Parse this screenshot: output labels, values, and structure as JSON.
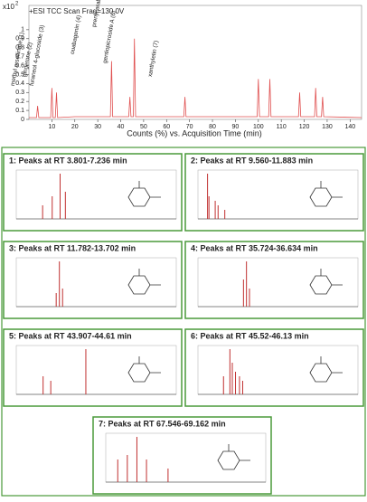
{
  "chart_data": [
    {
      "type": "line",
      "title": "+ESI TCC Scan Frag=130.0V",
      "y_scale": "x10",
      "y_scale_exp": "2",
      "xlabel": "Counts (%) vs. Acquisition Time (min)",
      "x": [
        0,
        3.3,
        3.8,
        4.3,
        9.5,
        10,
        10.5,
        11.5,
        12,
        12.5,
        20,
        35.5,
        36,
        36.5,
        43.5,
        44,
        44.5,
        45.5,
        46,
        46.5,
        67.5,
        68,
        68.5,
        99.5,
        100,
        100.5,
        104.5,
        105,
        105.5,
        117.5,
        118,
        118.5,
        124.5,
        125,
        125.5,
        127.5,
        128,
        128.5,
        145
      ],
      "values": [
        0.02,
        0.02,
        0.15,
        0.02,
        0.02,
        0.35,
        0.02,
        0.02,
        0.3,
        0.02,
        0.03,
        0.03,
        0.65,
        0.03,
        0.03,
        0.25,
        0.03,
        0.03,
        0.9,
        0.03,
        0.03,
        0.25,
        0.03,
        0.03,
        0.45,
        0.03,
        0.03,
        0.45,
        0.03,
        0.03,
        0.3,
        0.03,
        0.03,
        0.35,
        0.03,
        0.03,
        0.25,
        0.03,
        0.02
      ],
      "color": "#e05050",
      "xlim": [
        0,
        145
      ],
      "ylim": [
        0,
        1.15
      ],
      "xticks": [
        10,
        20,
        30,
        40,
        50,
        60,
        70,
        80,
        90,
        100,
        110,
        120,
        130,
        140
      ],
      "yticks": [
        0,
        0.1,
        0.2,
        0.3,
        0.4,
        0.5,
        0.6,
        0.7,
        0.8,
        0.9,
        1
      ],
      "annotations": [
        "methyl orsellinate (1)",
        "gingerone (2)",
        "furaneol 4-glucoside (3)",
        "ouabagenin (4)",
        "prenyl arabinosyl-(1→6)-glucoside (5)",
        "gentiopicroside A (6)",
        "xanthyletin (7)"
      ]
    },
    {
      "type": "spectra",
      "color": "#c03030",
      "panels": [
        {
          "title": "1: Peaks at RT 3.801-7.236 min",
          "xlim": [
            0,
            400
          ],
          "mz": [
            110,
            150,
            183,
            205
          ],
          "intensity": [
            0.3,
            0.5,
            1,
            0.6
          ]
        },
        {
          "title": "2: Peaks at RT 9.560-11.883 min",
          "xlim": [
            0,
            2000
          ],
          "mz": [
            200,
            230,
            360,
            420,
            560
          ],
          "intensity": [
            1,
            0.5,
            0.4,
            0.3,
            0.2
          ]
        },
        {
          "title": "3: Peaks at RT 11.782-13.702 min",
          "xlim": [
            0,
            600
          ],
          "mz": [
            250,
            270,
            290
          ],
          "intensity": [
            0.3,
            1,
            0.4
          ]
        },
        {
          "title": "4: Peaks at RT 35.724-36.634 min",
          "xlim": [
            0,
            800
          ],
          "mz": [
            380,
            405,
            430
          ],
          "intensity": [
            0.6,
            1,
            0.4
          ]
        },
        {
          "title": "5: Peaks at RT 43.907-44.61 min",
          "xlim": [
            0,
            500
          ],
          "mz": [
            140,
            180,
            363
          ],
          "intensity": [
            0.4,
            0.3,
            1
          ]
        },
        {
          "title": "6: Peaks at RT 45.52-46.13 min",
          "xlim": [
            0,
            1200
          ],
          "mz": [
            320,
            400,
            430,
            470,
            520,
            560
          ],
          "intensity": [
            0.4,
            1,
            0.7,
            0.5,
            0.4,
            0.3
          ]
        },
        {
          "title": "7: Peaks at RT 67.546-69.162 min",
          "xlim": [
            100,
            500
          ],
          "mz": [
            150,
            190,
            230,
            270,
            360
          ],
          "intensity": [
            0.5,
            0.6,
            1,
            0.5,
            0.3
          ]
        }
      ]
    }
  ]
}
